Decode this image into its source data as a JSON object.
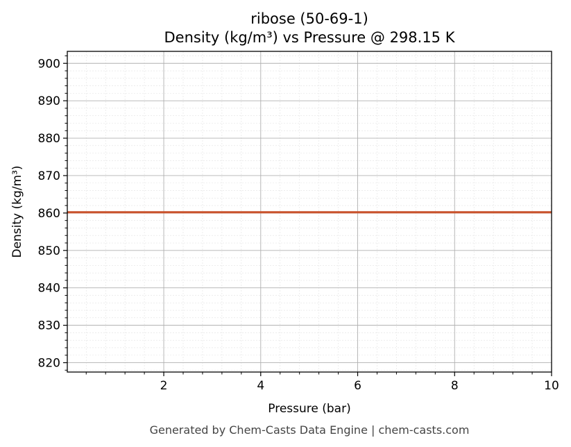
{
  "chart_data": {
    "type": "line",
    "title": "ribose (50-69-1)",
    "subtitle": "Density (kg/m³) vs Pressure @ 298.15 K",
    "xlabel": "Pressure (bar)",
    "ylabel": "Density (kg/m³)",
    "xlim": [
      0.01,
      10
    ],
    "ylim": [
      817.5,
      903.2
    ],
    "x_ticks": [
      2,
      4,
      6,
      8,
      10
    ],
    "x_tick_labels": [
      "2",
      "4",
      "6",
      "8",
      "10"
    ],
    "y_ticks": [
      820,
      830,
      840,
      850,
      860,
      870,
      880,
      890,
      900
    ],
    "y_tick_labels": [
      "820",
      "830",
      "840",
      "850",
      "860",
      "870",
      "880",
      "890",
      "900"
    ],
    "grid": true,
    "series": [
      {
        "color": "#c9522b",
        "x": [
          0.01,
          2,
          4,
          6,
          8,
          10
        ],
        "y": [
          860.2,
          860.2,
          860.2,
          860.2,
          860.2,
          860.2
        ]
      }
    ]
  },
  "footer": "Generated by Chem-Casts Data Engine | chem-casts.com"
}
